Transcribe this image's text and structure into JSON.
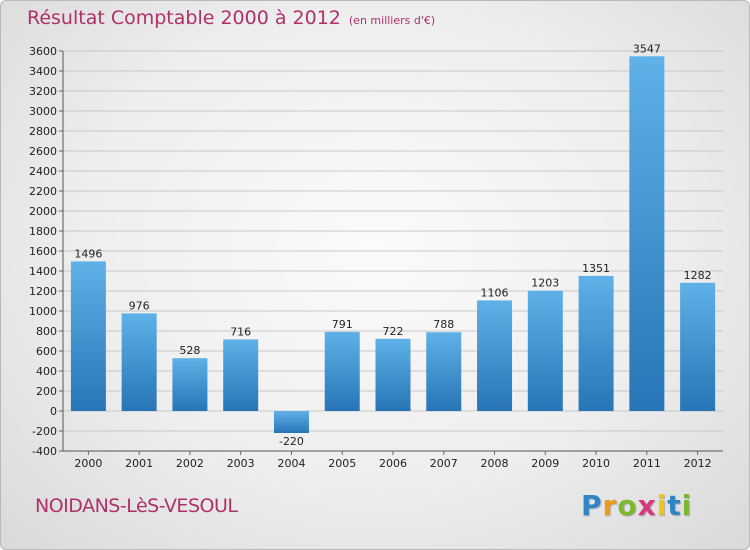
{
  "title": "Résultat Comptable 2000 à 2012",
  "subtitle": "(en milliers d'€)",
  "commune": "NOIDANS-LèS-VESOUL",
  "logo": {
    "letters": [
      "P",
      "r",
      "o",
      "x",
      "i",
      "t",
      "i"
    ],
    "colors": [
      "#2f86c6",
      "#f09a1c",
      "#7cb82f",
      "#d8397a",
      "#f2c318",
      "#2f86c6",
      "#7cb82f"
    ]
  },
  "colors": {
    "title": "#b0306a",
    "bar_top": "#5fb1e8",
    "bar_bottom": "#2775b6",
    "grid": "#c8c8c8"
  },
  "chart_data": {
    "type": "bar",
    "categories": [
      "2000",
      "2001",
      "2002",
      "2003",
      "2004",
      "2005",
      "2006",
      "2007",
      "2008",
      "2009",
      "2010",
      "2011",
      "2012"
    ],
    "values": [
      1496,
      976,
      528,
      716,
      -220,
      791,
      722,
      788,
      1106,
      1203,
      1351,
      3547,
      1282
    ],
    "ylim": [
      -400,
      3600
    ],
    "yticks": [
      -400,
      -200,
      0,
      200,
      400,
      600,
      800,
      1000,
      1200,
      1400,
      1600,
      1800,
      2000,
      2200,
      2400,
      2600,
      2800,
      3000,
      3200,
      3400,
      3600
    ],
    "grid": true,
    "title": "Résultat Comptable 2000 à 2012",
    "xlabel": "",
    "ylabel": ""
  }
}
